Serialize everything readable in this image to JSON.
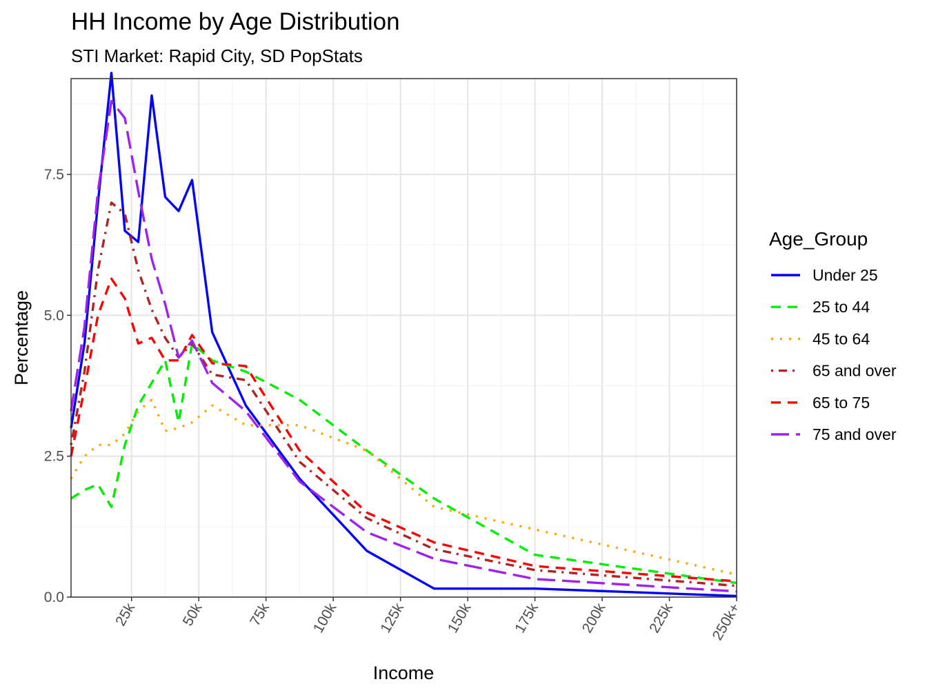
{
  "chart_data": {
    "type": "line",
    "title": "HH Income by Age Distribution",
    "subtitle": "STI Market: Rapid City, SD PopStats",
    "xlabel": "Income",
    "ylabel": "Percentage",
    "legend_title": "Age_Group",
    "legend_position": "right",
    "grid": true,
    "xlim": [
      2500,
      250000
    ],
    "ylim": [
      0,
      9.2
    ],
    "x_ticks": [
      {
        "value": 25000,
        "label": "25k"
      },
      {
        "value": 50000,
        "label": "50k"
      },
      {
        "value": 75000,
        "label": "75k"
      },
      {
        "value": 100000,
        "label": "100k"
      },
      {
        "value": 125000,
        "label": "125k"
      },
      {
        "value": 150000,
        "label": "150k"
      },
      {
        "value": 175000,
        "label": "175k"
      },
      {
        "value": 200000,
        "label": "200k"
      },
      {
        "value": 225000,
        "label": "225k"
      },
      {
        "value": 250000,
        "label": "250k+"
      }
    ],
    "y_ticks": [
      {
        "value": 0,
        "label": "0.0"
      },
      {
        "value": 2.5,
        "label": "2.5"
      },
      {
        "value": 5,
        "label": "5.0"
      },
      {
        "value": 7.5,
        "label": "7.5"
      }
    ],
    "x": [
      2500,
      7500,
      12500,
      17500,
      22500,
      27500,
      32500,
      37500,
      42500,
      47500,
      55000,
      67500,
      87500,
      112500,
      137500,
      175000,
      250000
    ],
    "series": [
      {
        "name": "Under 25",
        "color": "#0000ff",
        "dash": "solid",
        "values": [
          3.0,
          4.5,
          7.0,
          9.3,
          6.5,
          6.3,
          8.9,
          7.1,
          6.85,
          7.4,
          4.7,
          3.4,
          2.1,
          0.82,
          0.15,
          0.15,
          0.02
        ]
      },
      {
        "name": "25 to 44",
        "color": "#00ee00",
        "dash": "dashed",
        "values": [
          1.75,
          1.9,
          2.0,
          1.6,
          2.7,
          3.4,
          3.8,
          4.2,
          3.1,
          4.5,
          4.2,
          4.0,
          3.5,
          2.6,
          1.75,
          0.75,
          0.25
        ]
      },
      {
        "name": "45 to 64",
        "color": "#ffa500",
        "dash": "dotted",
        "values": [
          2.1,
          2.5,
          2.7,
          2.7,
          2.9,
          3.3,
          3.5,
          2.95,
          3.0,
          3.1,
          3.4,
          3.05,
          3.05,
          2.6,
          1.6,
          1.2,
          0.4
        ]
      },
      {
        "name": "65 and over",
        "color": "#b22222",
        "dash": "dotdash",
        "values": [
          2.7,
          4.0,
          5.8,
          7.0,
          6.8,
          5.8,
          5.1,
          4.6,
          4.25,
          4.5,
          3.95,
          3.85,
          2.4,
          1.4,
          0.85,
          0.48,
          0.2
        ]
      },
      {
        "name": "65 to 75",
        "color": "#ff0000",
        "dash": "dashed",
        "values": [
          2.5,
          3.7,
          5.0,
          5.65,
          5.3,
          4.5,
          4.6,
          4.2,
          4.2,
          4.65,
          4.15,
          4.1,
          2.6,
          1.5,
          0.97,
          0.55,
          0.28
        ]
      },
      {
        "name": "75 and over",
        "color": "#a020f0",
        "dash": "longdash",
        "values": [
          3.3,
          4.8,
          7.2,
          8.8,
          8.5,
          7.2,
          6.0,
          5.2,
          4.25,
          4.55,
          3.8,
          3.3,
          2.05,
          1.15,
          0.68,
          0.32,
          0.1
        ]
      }
    ]
  }
}
